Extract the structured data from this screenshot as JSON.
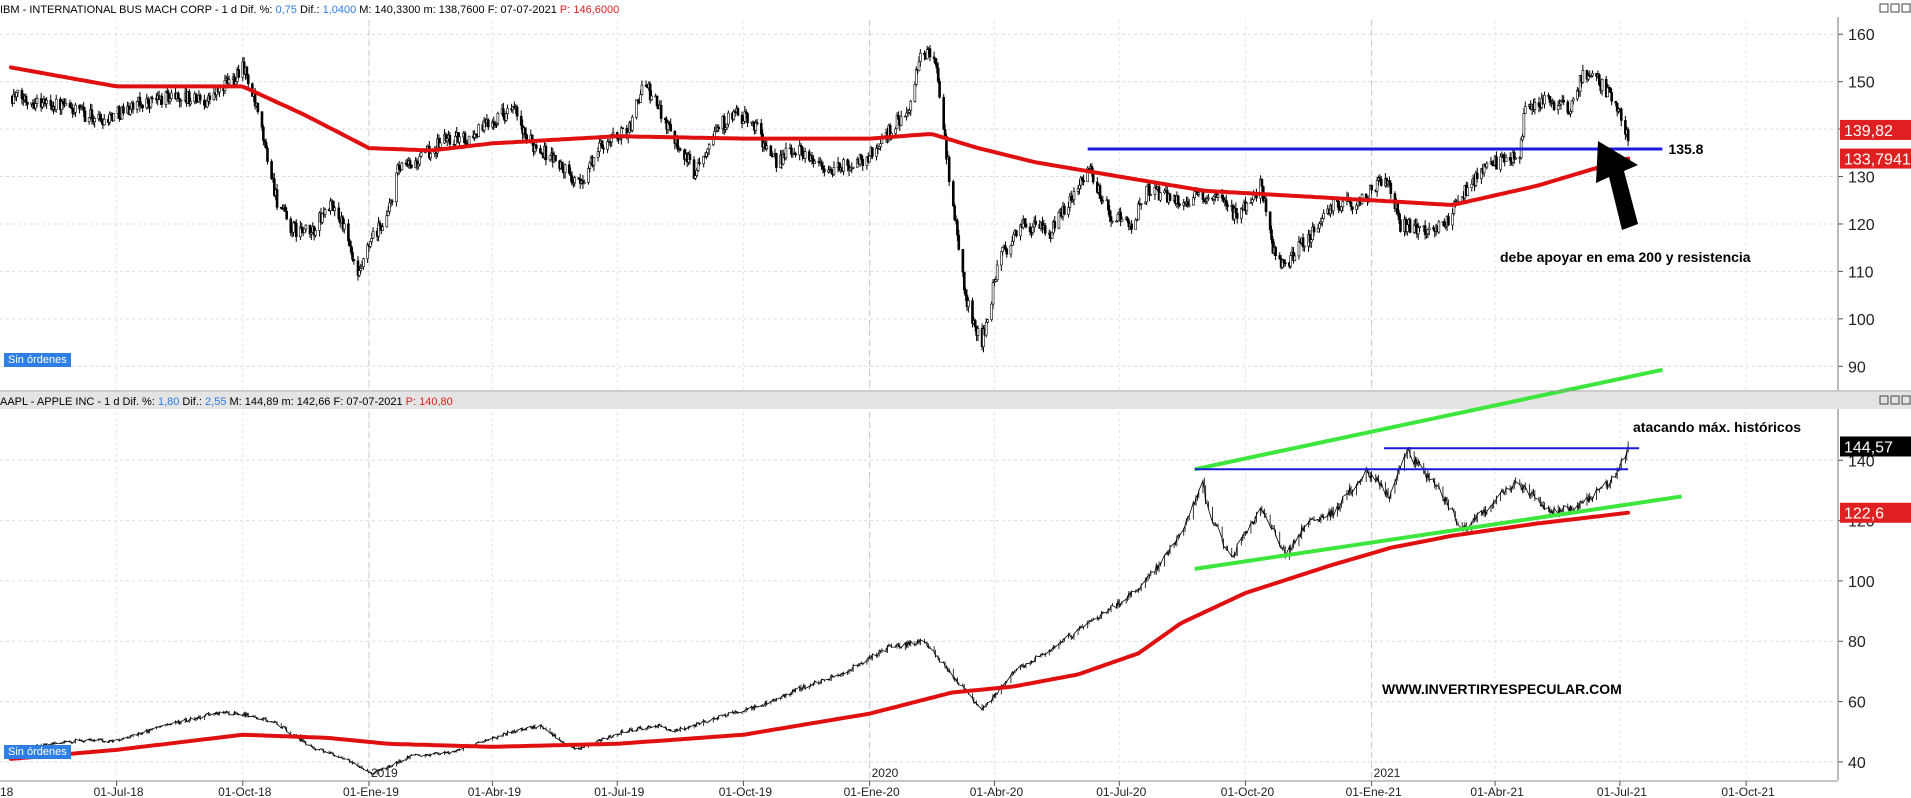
{
  "chart_data": [
    {
      "type": "candlestick",
      "header": {
        "title": "IBM - INTERNATIONAL BUS MACH CORP - ",
        "interval": "1 d",
        "dif_pct_label": "Dif. %:",
        "dif_pct": "0,75",
        "dif_label": "Dif.:",
        "dif": "1,0400",
        "max_label": "M:",
        "max": "140,3300",
        "min_label": "m:",
        "min": "138,7600",
        "date_label": "F:",
        "date": "07-07-2021",
        "price_label": "P:",
        "price": "146,6000"
      },
      "ylim": [
        85,
        163
      ],
      "yticks": [
        90,
        100,
        110,
        120,
        130,
        140,
        150,
        160
      ],
      "price_tags": [
        {
          "value": 139.82,
          "text": "139,82",
          "color": "#e02020"
        },
        {
          "value": 133.7941,
          "text": "133,7941",
          "color": "#e02020"
        }
      ],
      "anchors": [
        [
          "2018-04-15",
          147
        ],
        [
          "2018-05-20",
          145
        ],
        [
          "2018-06-20",
          142
        ],
        [
          "2018-07-15",
          145
        ],
        [
          "2018-08-10",
          147
        ],
        [
          "2018-09-05",
          146
        ],
        [
          "2018-09-25",
          151
        ],
        [
          "2018-10-01",
          154
        ],
        [
          "2018-10-12",
          143
        ],
        [
          "2018-10-26",
          125
        ],
        [
          "2018-11-05",
          119
        ],
        [
          "2018-11-20",
          118
        ],
        [
          "2018-12-03",
          124
        ],
        [
          "2018-12-12",
          121
        ],
        [
          "2018-12-24",
          108
        ],
        [
          "2019-01-02",
          116
        ],
        [
          "2019-01-15",
          122
        ],
        [
          "2019-01-22",
          131
        ],
        [
          "2019-02-05",
          133
        ],
        [
          "2019-02-25",
          138
        ],
        [
          "2019-03-15",
          138
        ],
        [
          "2019-04-05",
          143
        ],
        [
          "2019-04-17",
          144
        ],
        [
          "2019-04-25",
          138
        ],
        [
          "2019-05-15",
          134
        ],
        [
          "2019-06-03",
          128
        ],
        [
          "2019-06-20",
          137
        ],
        [
          "2019-07-10",
          140
        ],
        [
          "2019-07-20",
          150
        ],
        [
          "2019-08-05",
          142
        ],
        [
          "2019-08-26",
          131
        ],
        [
          "2019-09-10",
          140
        ],
        [
          "2019-09-25",
          143
        ],
        [
          "2019-10-10",
          141
        ],
        [
          "2019-10-22",
          133
        ],
        [
          "2019-11-10",
          136
        ],
        [
          "2019-12-03",
          131
        ],
        [
          "2019-12-31",
          134
        ],
        [
          "2020-01-22",
          142
        ],
        [
          "2020-01-30",
          143
        ],
        [
          "2020-02-07",
          156
        ],
        [
          "2020-02-18",
          155
        ],
        [
          "2020-02-28",
          130
        ],
        [
          "2020-03-12",
          103
        ],
        [
          "2020-03-23",
          95
        ],
        [
          "2020-04-05",
          113
        ],
        [
          "2020-04-22",
          120
        ],
        [
          "2020-05-12",
          118
        ],
        [
          "2020-06-08",
          132
        ],
        [
          "2020-06-25",
          122
        ],
        [
          "2020-07-10",
          120
        ],
        [
          "2020-07-22",
          127
        ],
        [
          "2020-08-15",
          125
        ],
        [
          "2020-09-05",
          126
        ],
        [
          "2020-09-25",
          122
        ],
        [
          "2020-10-12",
          128
        ],
        [
          "2020-10-22",
          114
        ],
        [
          "2020-10-30",
          111
        ],
        [
          "2020-11-15",
          117
        ],
        [
          "2020-12-05",
          124
        ],
        [
          "2020-12-25",
          125
        ],
        [
          "2021-01-12",
          130
        ],
        [
          "2021-01-22",
          120
        ],
        [
          "2021-02-05",
          119
        ],
        [
          "2021-02-25",
          120
        ],
        [
          "2021-03-12",
          128
        ],
        [
          "2021-03-26",
          132
        ],
        [
          "2021-04-08",
          134
        ],
        [
          "2021-04-19",
          134
        ],
        [
          "2021-04-22",
          143
        ],
        [
          "2021-05-05",
          146
        ],
        [
          "2021-05-25",
          144
        ],
        [
          "2021-06-05",
          152
        ],
        [
          "2021-06-15",
          150
        ],
        [
          "2021-06-28",
          146
        ],
        [
          "2021-07-07",
          138
        ]
      ],
      "ema200": {
        "color": "#e01010",
        "points": [
          [
            "2018-04-15",
            153
          ],
          [
            "2018-07-01",
            149
          ],
          [
            "2018-10-01",
            149
          ],
          [
            "2018-11-15",
            143
          ],
          [
            "2019-01-01",
            136
          ],
          [
            "2019-02-15",
            135.5
          ],
          [
            "2019-04-01",
            137
          ],
          [
            "2019-07-01",
            138.5
          ],
          [
            "2019-10-01",
            138
          ],
          [
            "2020-01-01",
            138
          ],
          [
            "2020-02-15",
            139
          ],
          [
            "2020-03-20",
            136
          ],
          [
            "2020-05-01",
            133
          ],
          [
            "2020-07-01",
            130
          ],
          [
            "2020-09-01",
            127
          ],
          [
            "2020-11-01",
            126
          ],
          [
            "2021-01-01",
            125
          ],
          [
            "2021-03-01",
            124
          ],
          [
            "2021-05-01",
            128
          ],
          [
            "2021-07-07",
            133.8
          ]
        ]
      },
      "resistance": {
        "value": 135.8,
        "from": "2020-06-08",
        "to": "2021-08-01",
        "label": "135.8",
        "color": "#1a1adc"
      },
      "annotation": "debe apoyar en ema 200 y resistencia",
      "status": "Sin órdenes"
    },
    {
      "type": "line",
      "header": {
        "title": "AAPL - APPLE INC - ",
        "interval": "1 d",
        "dif_pct_label": "Dif. %:",
        "dif_pct": "1,80",
        "dif_label": "Dif.:",
        "dif": "2,55",
        "max_label": "M:",
        "max": "144,89",
        "min_label": "m:",
        "min": "142,66",
        "date_label": "F:",
        "date": "07-07-2021",
        "price_label": "P:",
        "price": "140,80"
      },
      "ylim": [
        34,
        156
      ],
      "yticks": [
        40,
        60,
        80,
        100,
        120,
        140
      ],
      "price_tags": [
        {
          "value": 144.57,
          "text": "144,57",
          "color": "#000000"
        },
        {
          "value": 122.6,
          "text": "122,6",
          "color": "#e02020"
        }
      ],
      "anchors": [
        [
          "2018-04-15",
          44
        ],
        [
          "2018-06-01",
          47
        ],
        [
          "2018-07-01",
          47
        ],
        [
          "2018-08-05",
          52
        ],
        [
          "2018-09-10",
          56
        ],
        [
          "2018-10-01",
          56
        ],
        [
          "2018-10-25",
          53
        ],
        [
          "2018-11-20",
          45
        ],
        [
          "2018-12-15",
          41
        ],
        [
          "2019-01-03",
          36
        ],
        [
          "2019-02-01",
          42
        ],
        [
          "2019-03-01",
          43
        ],
        [
          "2019-04-15",
          50
        ],
        [
          "2019-05-05",
          52
        ],
        [
          "2019-06-01",
          44
        ],
        [
          "2019-07-05",
          50
        ],
        [
          "2019-07-30",
          52
        ],
        [
          "2019-08-10",
          50
        ],
        [
          "2019-09-15",
          55
        ],
        [
          "2019-10-15",
          59
        ],
        [
          "2019-11-15",
          65
        ],
        [
          "2019-12-15",
          70
        ],
        [
          "2020-01-15",
          78
        ],
        [
          "2020-02-10",
          80
        ],
        [
          "2020-02-28",
          70
        ],
        [
          "2020-03-23",
          57
        ],
        [
          "2020-04-15",
          70
        ],
        [
          "2020-05-15",
          78
        ],
        [
          "2020-06-15",
          88
        ],
        [
          "2020-07-15",
          97
        ],
        [
          "2020-07-31",
          106
        ],
        [
          "2020-08-15",
          115
        ],
        [
          "2020-08-31",
          132
        ],
        [
          "2020-09-03",
          125
        ],
        [
          "2020-09-20",
          107
        ],
        [
          "2020-10-12",
          124
        ],
        [
          "2020-10-30",
          109
        ],
        [
          "2020-11-15",
          119
        ],
        [
          "2020-12-05",
          123
        ],
        [
          "2020-12-28",
          137
        ],
        [
          "2021-01-15",
          128
        ],
        [
          "2021-01-26",
          143
        ],
        [
          "2021-02-20",
          130
        ],
        [
          "2021-03-08",
          117
        ],
        [
          "2021-03-25",
          123
        ],
        [
          "2021-04-15",
          133
        ],
        [
          "2021-05-12",
          123
        ],
        [
          "2021-06-01",
          125
        ],
        [
          "2021-06-25",
          133
        ],
        [
          "2021-07-07",
          144.6
        ]
      ],
      "ema200": {
        "color": "#e01010",
        "points": [
          [
            "2018-04-15",
            41
          ],
          [
            "2018-07-01",
            44
          ],
          [
            "2018-10-01",
            49
          ],
          [
            "2018-12-01",
            48
          ],
          [
            "2019-01-15",
            46
          ],
          [
            "2019-04-01",
            45
          ],
          [
            "2019-07-01",
            46
          ],
          [
            "2019-10-01",
            49
          ],
          [
            "2020-01-01",
            56
          ],
          [
            "2020-03-01",
            63
          ],
          [
            "2020-04-15",
            65
          ],
          [
            "2020-06-01",
            69
          ],
          [
            "2020-07-15",
            76
          ],
          [
            "2020-08-15",
            86
          ],
          [
            "2020-10-01",
            96
          ],
          [
            "2020-12-01",
            105
          ],
          [
            "2021-01-15",
            111
          ],
          [
            "2021-03-01",
            115
          ],
          [
            "2021-05-01",
            119
          ],
          [
            "2021-07-07",
            122.6
          ]
        ]
      },
      "trend_lines": [
        {
          "from": [
            "2020-08-25",
            104
          ],
          "to": [
            "2021-08-15",
            128
          ],
          "color": "#3ce63c"
        },
        {
          "from": [
            "2020-08-25",
            137
          ],
          "to": [
            "2021-08-01",
            170
          ],
          "color": "#3ce63c"
        },
        {
          "from": [
            "2020-08-25",
            137
          ],
          "to": [
            "2021-07-07",
            137
          ],
          "color": "#1a1adc"
        },
        {
          "from": [
            "2021-01-10",
            144
          ],
          "to": [
            "2021-07-15",
            144
          ],
          "color": "#1a1adc"
        }
      ],
      "annotation": "atacando máx. históricos",
      "watermark": "WWW.INVERTIRYESPECULAR.COM",
      "status": "Sin órdenes"
    }
  ],
  "xaxis": {
    "labels": [
      {
        "date": "2018-04-01",
        "text": "18"
      },
      {
        "date": "2018-07-01",
        "text": "01-Jul-18"
      },
      {
        "date": "2018-10-01",
        "text": "01-Oct-18"
      },
      {
        "date": "2019-01-01",
        "text": "01-Ene-19"
      },
      {
        "date": "2019-04-01",
        "text": "01-Abr-19"
      },
      {
        "date": "2019-07-01",
        "text": "01-Jul-19"
      },
      {
        "date": "2019-10-01",
        "text": "01-Oct-19"
      },
      {
        "date": "2020-01-01",
        "text": "01-Ene-20"
      },
      {
        "date": "2020-04-01",
        "text": "01-Abr-20"
      },
      {
        "date": "2020-07-01",
        "text": "01-Jul-20"
      },
      {
        "date": "2020-10-01",
        "text": "01-Oct-20"
      },
      {
        "date": "2021-01-01",
        "text": "01-Ene-21"
      },
      {
        "date": "2021-04-01",
        "text": "01-Abr-21"
      },
      {
        "date": "2021-07-01",
        "text": "01-Jul-21"
      },
      {
        "date": "2021-10-01",
        "text": "01-Oct-21"
      }
    ],
    "years": [
      {
        "date": "2019-01-01",
        "text": "2019"
      },
      {
        "date": "2020-01-01",
        "text": "2020"
      },
      {
        "date": "2021-01-01",
        "text": "2021"
      }
    ],
    "range": [
      "2018-04-07",
      "2021-12-07"
    ]
  }
}
